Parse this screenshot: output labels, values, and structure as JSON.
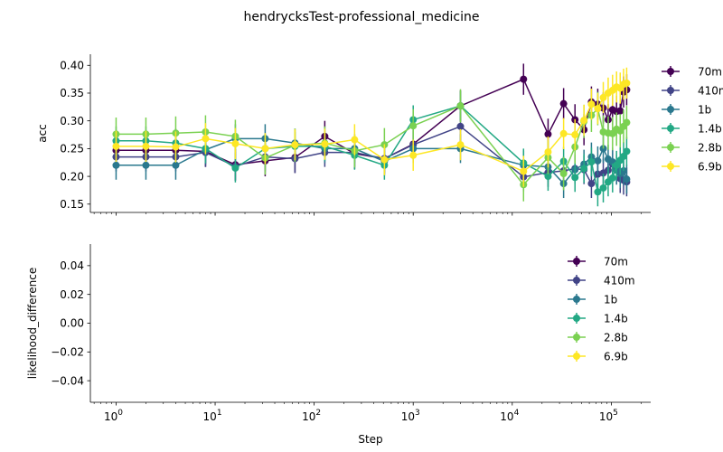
{
  "chart_data": {
    "type": "line",
    "title": "hendrycksTest-professional_medicine",
    "xlabel": "Step",
    "xscale": "log",
    "xlim": [
      0.55,
      250000
    ],
    "xticks": [
      {
        "base": "10",
        "exp": "0",
        "value": 1
      },
      {
        "base": "10",
        "exp": "1",
        "value": 10
      },
      {
        "base": "10",
        "exp": "2",
        "value": 100
      },
      {
        "base": "10",
        "exp": "3",
        "value": 1000
      },
      {
        "base": "10",
        "exp": "4",
        "value": 10000
      },
      {
        "base": "10",
        "exp": "5",
        "value": 100000
      }
    ],
    "steps": [
      1,
      2,
      4,
      8,
      16,
      32,
      64,
      128,
      256,
      512,
      1000,
      3000,
      13000,
      23000,
      33000,
      43000,
      53000,
      63000,
      73000,
      83000,
      93000,
      103000,
      113000,
      123000,
      133000,
      143000
    ],
    "colors": {
      "70m": "#440154",
      "410m": "#414487",
      "1b": "#2a788e",
      "1.4b": "#22a884",
      "2.8b": "#7ad151",
      "6.9b": "#fde725"
    },
    "panels": [
      {
        "ylabel": "acc",
        "ylim": [
          0.135,
          0.42
        ],
        "yticks": [
          "0.15",
          "0.20",
          "0.25",
          "0.30",
          "0.35",
          "0.40"
        ],
        "ytick_values": [
          0.15,
          0.2,
          0.25,
          0.3,
          0.35,
          0.4
        ],
        "legend_position": "outside-right",
        "series": [
          {
            "name": "70m",
            "err": 0.028,
            "values": [
              0.247,
              0.247,
              0.247,
              0.245,
              0.221,
              0.228,
              0.234,
              0.272,
              0.241,
              0.232,
              0.258,
              0.327,
              0.375,
              0.276,
              0.331,
              0.302,
              0.284,
              0.334,
              0.33,
              0.323,
              0.302,
              0.32,
              0.317,
              0.318,
              0.352,
              0.356
            ]
          },
          {
            "name": "410m",
            "err": 0.026,
            "values": [
              0.235,
              0.235,
              0.235,
              0.243,
              0.218,
              0.235,
              0.232,
              0.243,
              0.243,
              0.232,
              0.257,
              0.29,
              0.199,
              0.207,
              0.21,
              0.214,
              0.212,
              0.187,
              0.204,
              0.206,
              0.211,
              0.222,
              0.213,
              0.196,
              0.193,
              0.19
            ]
          },
          {
            "name": "1b",
            "err": 0.026,
            "values": [
              0.22,
              0.22,
              0.22,
              0.248,
              0.268,
              0.268,
              0.26,
              0.25,
              0.25,
              0.227,
              0.25,
              0.25,
              0.22,
              0.217,
              0.187,
              0.212,
              0.222,
              0.235,
              0.228,
              0.25,
              0.231,
              0.226,
              0.211,
              0.205,
              0.21,
              0.195
            ]
          },
          {
            "name": "1.4b",
            "err": 0.026,
            "values": [
              0.264,
              0.264,
              0.26,
              0.25,
              0.215,
              0.25,
              0.254,
              0.254,
              0.238,
              0.22,
              0.302,
              0.327,
              0.224,
              0.2,
              0.227,
              0.198,
              0.214,
              0.226,
              0.172,
              0.179,
              0.19,
              0.197,
              0.22,
              0.229,
              0.236,
              0.245
            ]
          },
          {
            "name": "2.8b",
            "err": 0.03,
            "values": [
              0.276,
              0.276,
              0.278,
              0.28,
              0.272,
              0.233,
              0.256,
              0.26,
              0.246,
              0.257,
              0.291,
              0.327,
              0.185,
              0.234,
              0.205,
              0.253,
              0.299,
              0.31,
              0.322,
              0.28,
              0.278,
              0.277,
              0.285,
              0.282,
              0.29,
              0.297
            ]
          },
          {
            "name": "6.9b",
            "err": 0.028,
            "values": [
              0.254,
              0.254,
              0.253,
              0.268,
              0.259,
              0.25,
              0.257,
              0.258,
              0.266,
              0.23,
              0.238,
              0.257,
              0.209,
              0.244,
              0.277,
              0.275,
              0.301,
              0.33,
              0.322,
              0.342,
              0.35,
              0.355,
              0.361,
              0.359,
              0.366,
              0.368
            ]
          }
        ]
      },
      {
        "ylabel": "likelihood_difference",
        "ylim": [
          -0.055,
          0.055
        ],
        "yticks": [
          "0.04",
          "0.02",
          "0.00",
          "−0.02",
          "−0.04"
        ],
        "ytick_values": [
          0.04,
          0.02,
          0.0,
          -0.02,
          -0.04
        ],
        "legend_position": "upper-right",
        "series_names": [
          "70m",
          "410m",
          "1b",
          "1.4b",
          "2.8b",
          "6.9b"
        ]
      }
    ]
  }
}
